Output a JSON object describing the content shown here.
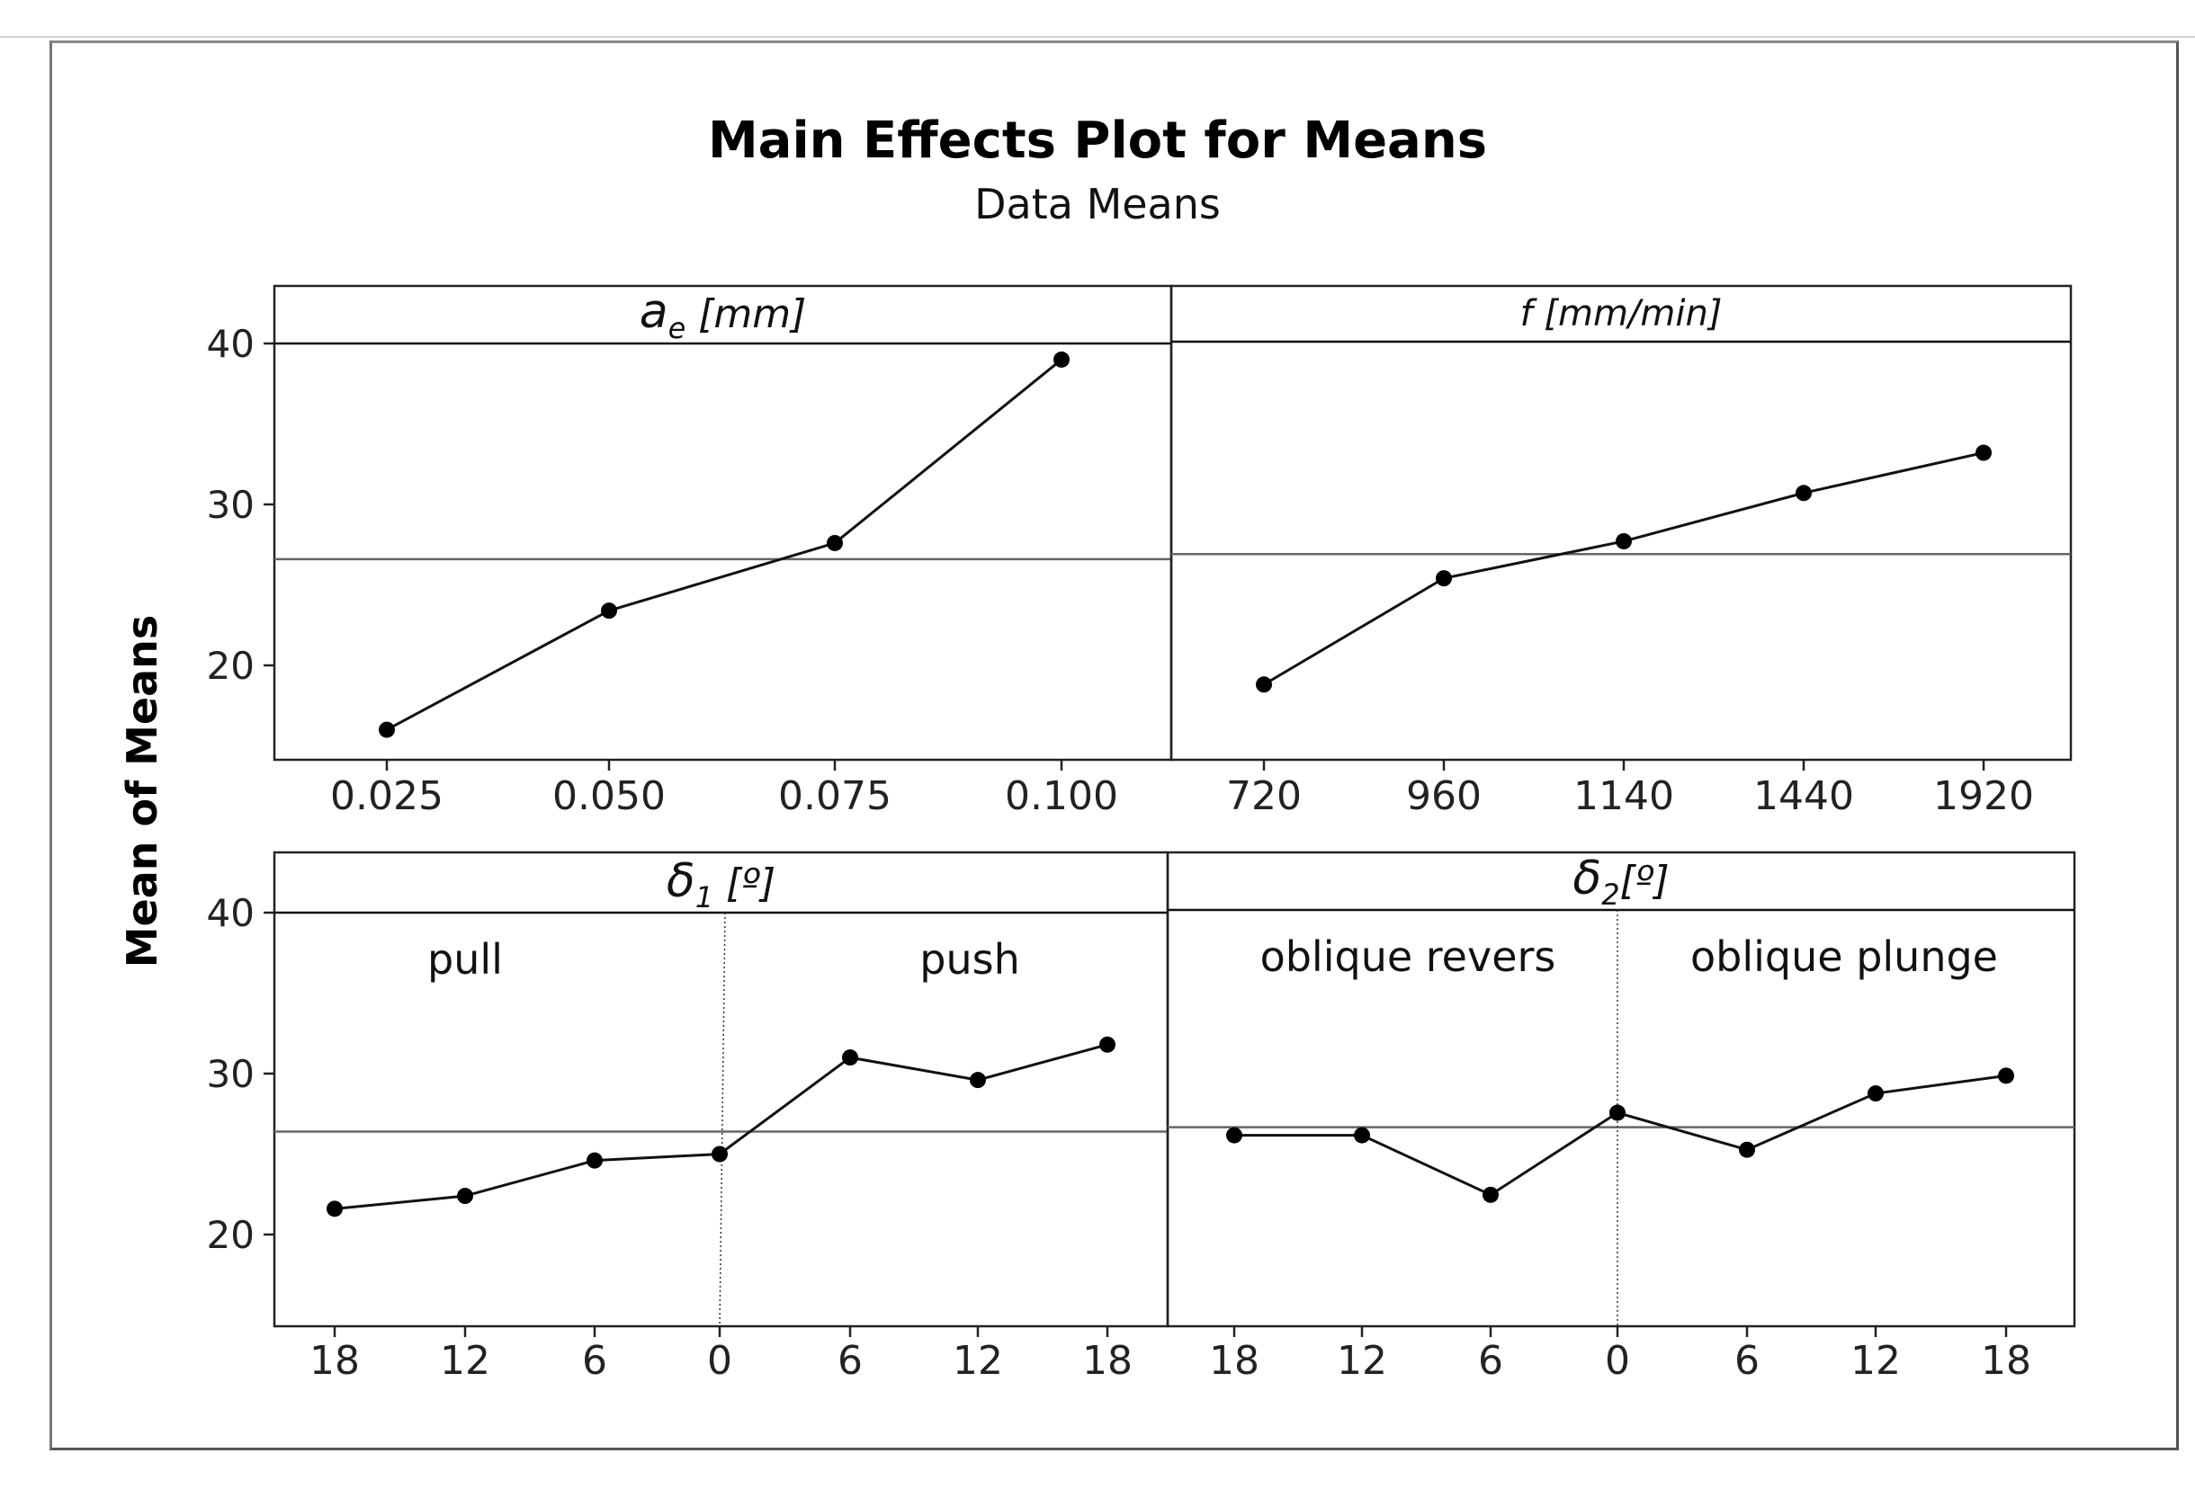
{
  "figure": {
    "title": "Main Effects Plot for Means",
    "subtitle": "Data Means",
    "ylabel": "Mean of Means"
  },
  "chart_data": [
    {
      "type": "line",
      "panel_title": "ae [mm]",
      "panel_title_main": "a",
      "panel_title_sub": "e",
      "panel_title_rest": " [mm]",
      "categories": [
        "0.025",
        "0.050",
        "0.075",
        "0.100"
      ],
      "values": [
        16.0,
        23.4,
        27.6,
        39.0
      ],
      "reference_mean": 26.6,
      "ylim": [
        15,
        40
      ],
      "yticks": [
        20,
        30,
        40
      ]
    },
    {
      "type": "line",
      "panel_title": "f [mm/min]",
      "categories": [
        "720",
        "960",
        "1140",
        "1440",
        "1920"
      ],
      "values": [
        18.7,
        25.3,
        27.6,
        30.6,
        33.1
      ],
      "reference_mean": 26.8,
      "ylim": [
        15,
        40
      ],
      "yticks": [
        20,
        30,
        40
      ]
    },
    {
      "type": "line",
      "panel_title": "δ1 [º]",
      "panel_title_main": "δ",
      "panel_title_sub": "1",
      "panel_title_rest": " [º]",
      "categories": [
        "18",
        "12",
        "6",
        "0",
        "6",
        "12",
        "18"
      ],
      "values": [
        21.6,
        22.4,
        24.6,
        25.0,
        31.0,
        29.6,
        31.8
      ],
      "reference_mean": 26.4,
      "ylim": [
        15,
        40
      ],
      "yticks": [
        20,
        30,
        40
      ],
      "regions": [
        "pull",
        "push"
      ]
    },
    {
      "type": "line",
      "panel_title": "δ2 [º]",
      "panel_title_main": "δ",
      "panel_title_sub": "2",
      "panel_title_rest": "[º]",
      "categories": [
        "18",
        "12",
        "6",
        "0",
        "6",
        "12",
        "18"
      ],
      "values": [
        26.0,
        26.0,
        22.3,
        27.4,
        25.1,
        28.6,
        29.7
      ],
      "reference_mean": 26.5,
      "ylim": [
        15,
        40
      ],
      "yticks": [
        20,
        30,
        40
      ],
      "regions": [
        "oblique revers",
        "oblique plunge"
      ]
    }
  ]
}
